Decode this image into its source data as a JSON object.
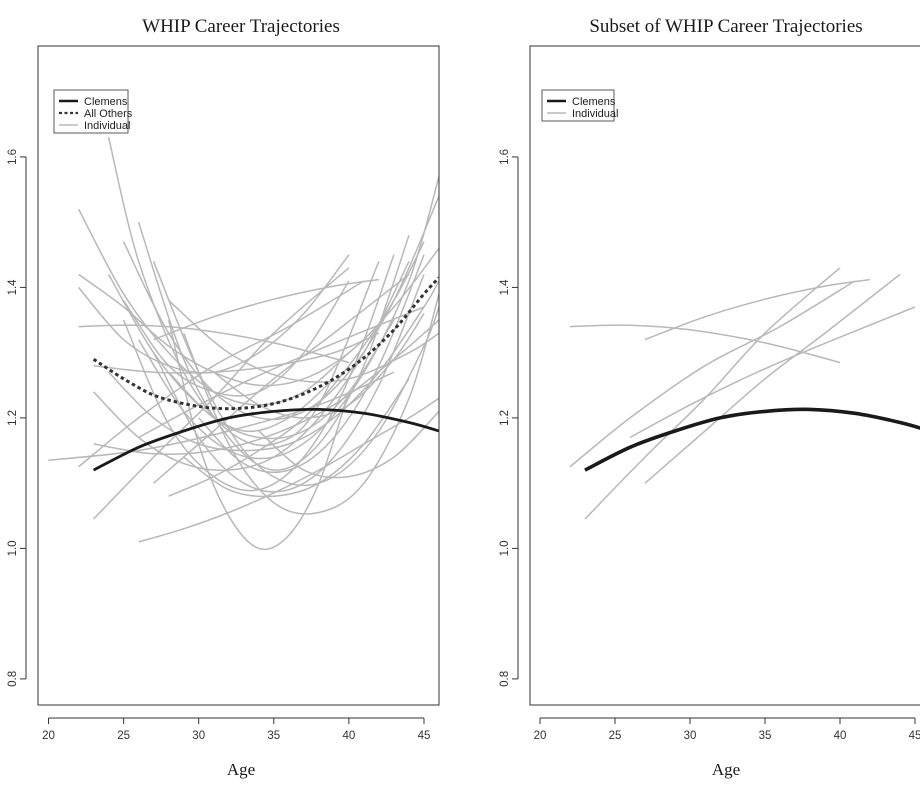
{
  "chart_data": [
    {
      "type": "line",
      "title": "WHIP Career Trajectories",
      "xlabel": "Age",
      "ylabel": "",
      "xlim": [
        19,
        46
      ],
      "ylim": [
        0.76,
        1.77
      ],
      "xticks": [
        20,
        25,
        30,
        35,
        40,
        45
      ],
      "yticks": [
        0.8,
        1.0,
        1.2,
        1.4,
        1.6
      ],
      "legend": {
        "position": "top-left",
        "entries": [
          {
            "label": "Clemens",
            "style": "thick-black"
          },
          {
            "label": "All Others",
            "style": "dotted"
          },
          {
            "label": "Individual",
            "style": "gray"
          }
        ]
      },
      "colors": {
        "clemens": "#1a1a1a",
        "all_others": "#333333",
        "individual": "#b8b8b8"
      },
      "series": [
        {
          "name": "Clemens",
          "style": "thick-black",
          "x": [
            23,
            26,
            29,
            32,
            35,
            38,
            41,
            44,
            46
          ],
          "y": [
            1.12,
            1.155,
            1.18,
            1.2,
            1.21,
            1.213,
            1.207,
            1.193,
            1.18
          ]
        },
        {
          "name": "All Others",
          "style": "dotted",
          "x": [
            23,
            25,
            27,
            29,
            31,
            33,
            35,
            37,
            39,
            41,
            43,
            45,
            46
          ],
          "y": [
            1.29,
            1.26,
            1.235,
            1.222,
            1.215,
            1.215,
            1.222,
            1.237,
            1.26,
            1.292,
            1.335,
            1.39,
            1.415
          ]
        },
        {
          "style": "gray",
          "x": [
            20,
            26,
            32,
            38,
            43
          ],
          "y": [
            1.135,
            1.15,
            1.18,
            1.22,
            1.27
          ]
        },
        {
          "style": "gray",
          "x": [
            23,
            27,
            31,
            35,
            40
          ],
          "y": [
            1.045,
            1.14,
            1.23,
            1.33,
            1.43
          ]
        },
        {
          "style": "gray",
          "x": [
            22,
            26,
            31,
            36,
            41
          ],
          "y": [
            1.125,
            1.2,
            1.28,
            1.34,
            1.41
          ]
        },
        {
          "style": "gray",
          "x": [
            27,
            31,
            35,
            39,
            44
          ],
          "y": [
            1.1,
            1.18,
            1.26,
            1.33,
            1.42
          ]
        },
        {
          "style": "gray",
          "x": [
            27,
            31,
            35,
            39,
            42
          ],
          "y": [
            1.32,
            1.355,
            1.382,
            1.402,
            1.412
          ]
        },
        {
          "style": "gray",
          "x": [
            22,
            26,
            30,
            35,
            40
          ],
          "y": [
            1.34,
            1.342,
            1.335,
            1.315,
            1.285
          ]
        },
        {
          "style": "gray",
          "x": [
            26,
            30,
            34,
            38,
            45
          ],
          "y": [
            1.17,
            1.22,
            1.265,
            1.305,
            1.37
          ]
        },
        {
          "style": "gray",
          "x": [
            22,
            25,
            28,
            31,
            34,
            37,
            40
          ],
          "y": [
            1.52,
            1.39,
            1.3,
            1.24,
            1.22,
            1.24,
            1.3
          ]
        },
        {
          "style": "gray",
          "x": [
            24,
            27,
            30,
            33,
            36,
            39
          ],
          "y": [
            1.42,
            1.3,
            1.22,
            1.18,
            1.2,
            1.26
          ]
        },
        {
          "style": "gray",
          "x": [
            26,
            29,
            32,
            35,
            38,
            41,
            44
          ],
          "y": [
            1.5,
            1.29,
            1.17,
            1.12,
            1.16,
            1.28,
            1.48
          ]
        },
        {
          "style": "gray",
          "x": [
            28,
            30,
            32,
            34,
            36,
            38,
            40
          ],
          "y": [
            1.35,
            1.16,
            1.05,
            1.0,
            1.02,
            1.1,
            1.24
          ]
        },
        {
          "style": "gray",
          "x": [
            29,
            32,
            35,
            38,
            41,
            44,
            46
          ],
          "y": [
            1.33,
            1.16,
            1.07,
            1.055,
            1.1,
            1.23,
            1.39
          ]
        },
        {
          "style": "gray",
          "x": [
            26,
            29,
            32,
            35,
            38,
            41,
            44,
            46
          ],
          "y": [
            1.01,
            1.03,
            1.055,
            1.085,
            1.12,
            1.16,
            1.2,
            1.23
          ]
        },
        {
          "style": "gray",
          "x": [
            25,
            28,
            31,
            34,
            37,
            40,
            43
          ],
          "y": [
            1.35,
            1.19,
            1.11,
            1.09,
            1.14,
            1.26,
            1.45
          ]
        },
        {
          "style": "gray",
          "x": [
            23,
            26,
            29,
            32,
            35,
            38,
            41,
            44
          ],
          "y": [
            1.24,
            1.17,
            1.13,
            1.12,
            1.14,
            1.2,
            1.3,
            1.44
          ]
        },
        {
          "style": "gray",
          "x": [
            27,
            30,
            33,
            36,
            39,
            42,
            45,
            46
          ],
          "y": [
            1.44,
            1.27,
            1.15,
            1.1,
            1.11,
            1.18,
            1.31,
            1.37
          ]
        },
        {
          "style": "gray",
          "x": [
            22,
            25,
            28,
            31,
            34,
            37,
            40,
            43,
            46
          ],
          "y": [
            1.42,
            1.37,
            1.31,
            1.27,
            1.25,
            1.26,
            1.3,
            1.37,
            1.46
          ]
        },
        {
          "style": "gray",
          "x": [
            24,
            27,
            30,
            33,
            36,
            39,
            42,
            45,
            46
          ],
          "y": [
            1.27,
            1.2,
            1.16,
            1.15,
            1.16,
            1.2,
            1.27,
            1.37,
            1.41
          ]
        },
        {
          "style": "gray",
          "x": [
            25,
            28,
            31,
            34,
            37,
            40,
            43,
            46
          ],
          "y": [
            1.47,
            1.33,
            1.24,
            1.2,
            1.21,
            1.27,
            1.38,
            1.54
          ]
        },
        {
          "style": "gray",
          "x": [
            23,
            27,
            31,
            35,
            39,
            43,
            46
          ],
          "y": [
            1.16,
            1.145,
            1.15,
            1.175,
            1.22,
            1.29,
            1.35
          ]
        },
        {
          "style": "gray",
          "x": [
            27,
            30,
            33,
            36,
            39,
            42,
            45
          ],
          "y": [
            1.3,
            1.17,
            1.1,
            1.09,
            1.14,
            1.25,
            1.42
          ]
        },
        {
          "style": "gray",
          "x": [
            26,
            29,
            32,
            35,
            38,
            41,
            44,
            46
          ],
          "y": [
            1.32,
            1.21,
            1.15,
            1.14,
            1.18,
            1.27,
            1.41,
            1.57
          ]
        },
        {
          "style": "gray",
          "x": [
            28,
            31,
            34,
            37,
            40,
            43
          ],
          "y": [
            1.27,
            1.2,
            1.17,
            1.18,
            1.24,
            1.35
          ]
        },
        {
          "style": "gray",
          "x": [
            24,
            26,
            29,
            32,
            35,
            38,
            42
          ],
          "y": [
            1.63,
            1.44,
            1.27,
            1.18,
            1.16,
            1.22,
            1.44
          ]
        },
        {
          "style": "gray",
          "x": [
            30,
            33,
            36,
            39,
            42,
            45
          ],
          "y": [
            1.2,
            1.13,
            1.12,
            1.17,
            1.28,
            1.45
          ]
        },
        {
          "style": "gray",
          "x": [
            25,
            28,
            31,
            34,
            37,
            40
          ],
          "y": [
            1.38,
            1.28,
            1.24,
            1.24,
            1.3,
            1.41
          ]
        },
        {
          "style": "gray",
          "x": [
            28,
            31,
            34,
            37,
            40,
            43,
            45
          ],
          "y": [
            1.08,
            1.11,
            1.15,
            1.2,
            1.28,
            1.38,
            1.47
          ]
        },
        {
          "style": "gray",
          "x": [
            31,
            34,
            37,
            40,
            43,
            45
          ],
          "y": [
            1.27,
            1.22,
            1.2,
            1.22,
            1.29,
            1.36
          ]
        },
        {
          "style": "gray",
          "x": [
            23,
            27,
            31,
            35,
            39,
            42
          ],
          "y": [
            1.28,
            1.27,
            1.27,
            1.28,
            1.3,
            1.33
          ]
        },
        {
          "style": "gray",
          "x": [
            28,
            32,
            36,
            40,
            44,
            46
          ],
          "y": [
            1.38,
            1.3,
            1.26,
            1.26,
            1.3,
            1.33
          ]
        },
        {
          "style": "gray",
          "x": [
            22,
            25,
            28,
            31,
            34,
            37,
            40
          ],
          "y": [
            1.4,
            1.32,
            1.28,
            1.27,
            1.3,
            1.36,
            1.45
          ]
        },
        {
          "style": "gray",
          "x": [
            34,
            37,
            40,
            43,
            46
          ],
          "y": [
            1.18,
            1.12,
            1.11,
            1.14,
            1.21
          ]
        },
        {
          "style": "gray",
          "x": [
            29,
            32,
            35,
            38,
            41,
            44
          ],
          "y": [
            1.14,
            1.09,
            1.08,
            1.1,
            1.16,
            1.26
          ]
        }
      ]
    },
    {
      "type": "line",
      "title": "Subset of WHIP Career Trajectories",
      "xlabel": "Age",
      "ylabel": "",
      "xlim": [
        19,
        46
      ],
      "ylim": [
        0.76,
        1.77
      ],
      "xticks": [
        20,
        25,
        30,
        35,
        40,
        45
      ],
      "yticks": [
        0.8,
        1.0,
        1.2,
        1.4,
        1.6
      ],
      "legend": {
        "position": "top-left",
        "entries": [
          {
            "label": "Clemens",
            "style": "thick-black"
          },
          {
            "label": "Individual",
            "style": "gray"
          }
        ]
      },
      "colors": {
        "clemens": "#1a1a1a",
        "individual": "#b8b8b8"
      },
      "series": [
        {
          "name": "Clemens",
          "style": "thick-black",
          "x": [
            23,
            26,
            29,
            32,
            35,
            38,
            41,
            44,
            46
          ],
          "y": [
            1.12,
            1.155,
            1.18,
            1.2,
            1.21,
            1.213,
            1.207,
            1.193,
            1.18
          ]
        },
        {
          "style": "gray",
          "x": [
            23,
            27,
            31,
            35,
            40
          ],
          "y": [
            1.045,
            1.14,
            1.23,
            1.33,
            1.43
          ]
        },
        {
          "style": "gray",
          "x": [
            22,
            26,
            31,
            36,
            41
          ],
          "y": [
            1.125,
            1.2,
            1.28,
            1.34,
            1.41
          ]
        },
        {
          "style": "gray",
          "x": [
            27,
            31,
            35,
            39,
            44
          ],
          "y": [
            1.1,
            1.18,
            1.26,
            1.33,
            1.42
          ]
        },
        {
          "style": "gray",
          "x": [
            27,
            31,
            35,
            39,
            42
          ],
          "y": [
            1.32,
            1.355,
            1.382,
            1.402,
            1.412
          ]
        },
        {
          "style": "gray",
          "x": [
            22,
            26,
            30,
            35,
            40
          ],
          "y": [
            1.34,
            1.342,
            1.335,
            1.315,
            1.285
          ]
        },
        {
          "style": "gray",
          "x": [
            26,
            30,
            34,
            38,
            45
          ],
          "y": [
            1.17,
            1.22,
            1.265,
            1.305,
            1.37
          ]
        }
      ]
    }
  ]
}
